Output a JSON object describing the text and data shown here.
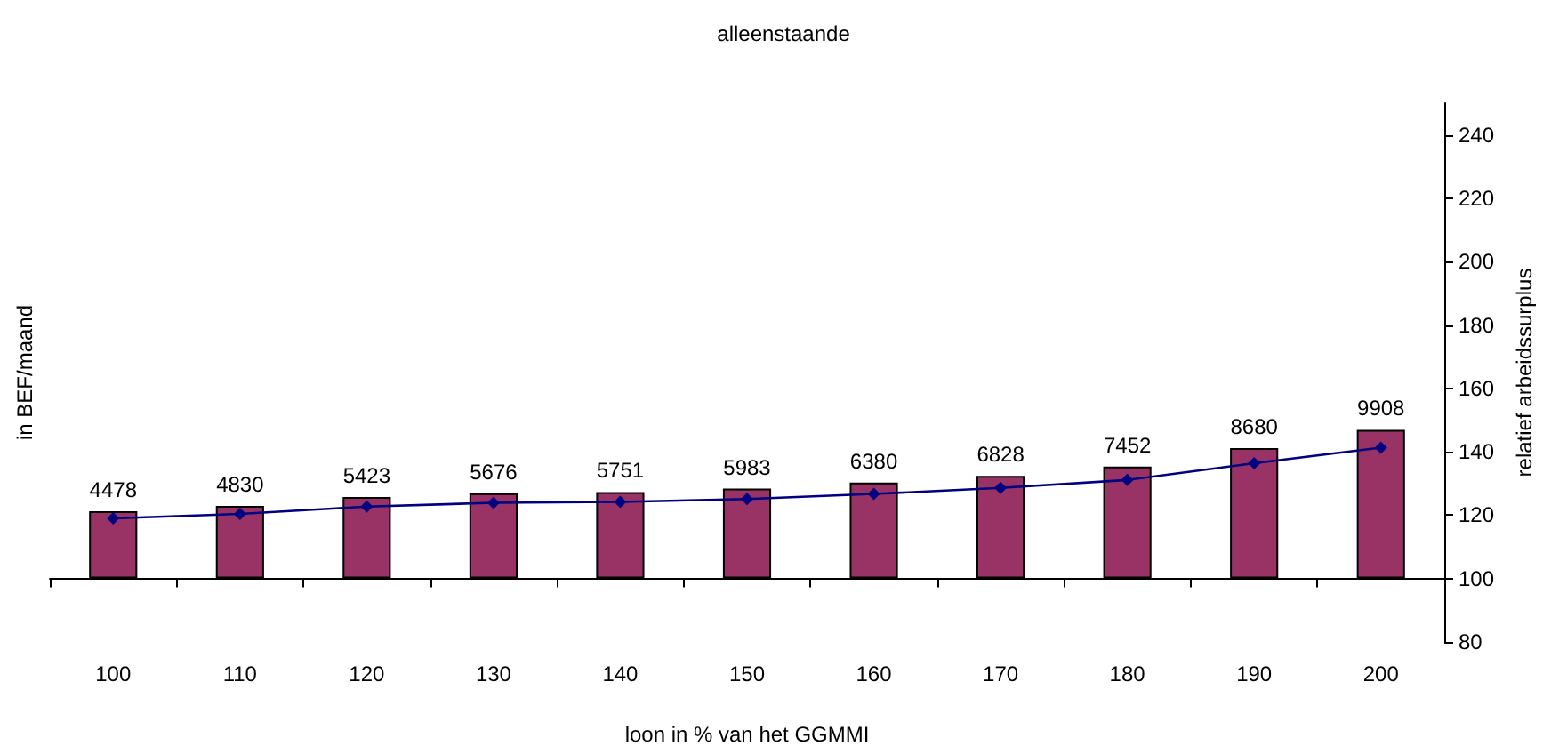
{
  "chart_data": {
    "type": "bar",
    "title": "alleenstaande",
    "xlabel": "loon in % van het GGMMI",
    "ylabel": "in BEF/maand",
    "y2label": "relatief arbeidssurplus",
    "categories": [
      "100",
      "110",
      "120",
      "130",
      "140",
      "150",
      "160",
      "170",
      "180",
      "190",
      "200"
    ],
    "series": [
      {
        "color": "#993366",
        "values": [
          4478,
          4830,
          5423,
          5676,
          5751,
          5983,
          6380,
          6828,
          7452,
          8680,
          9908
        ],
        "data_labels": true
      },
      {
        "type": "line",
        "axis": "y2",
        "color": "#000080",
        "marker": "diamond",
        "line_style": "solid",
        "values": [
          119.0,
          120.4,
          122.7,
          123.9,
          124.2,
          125.1,
          126.7,
          128.6,
          131.1,
          136.4,
          141.3
        ]
      }
    ],
    "y2lim": [
      80,
      250
    ],
    "y2ticks": [
      80,
      100,
      120,
      140,
      160,
      180,
      200,
      220,
      240
    ]
  }
}
